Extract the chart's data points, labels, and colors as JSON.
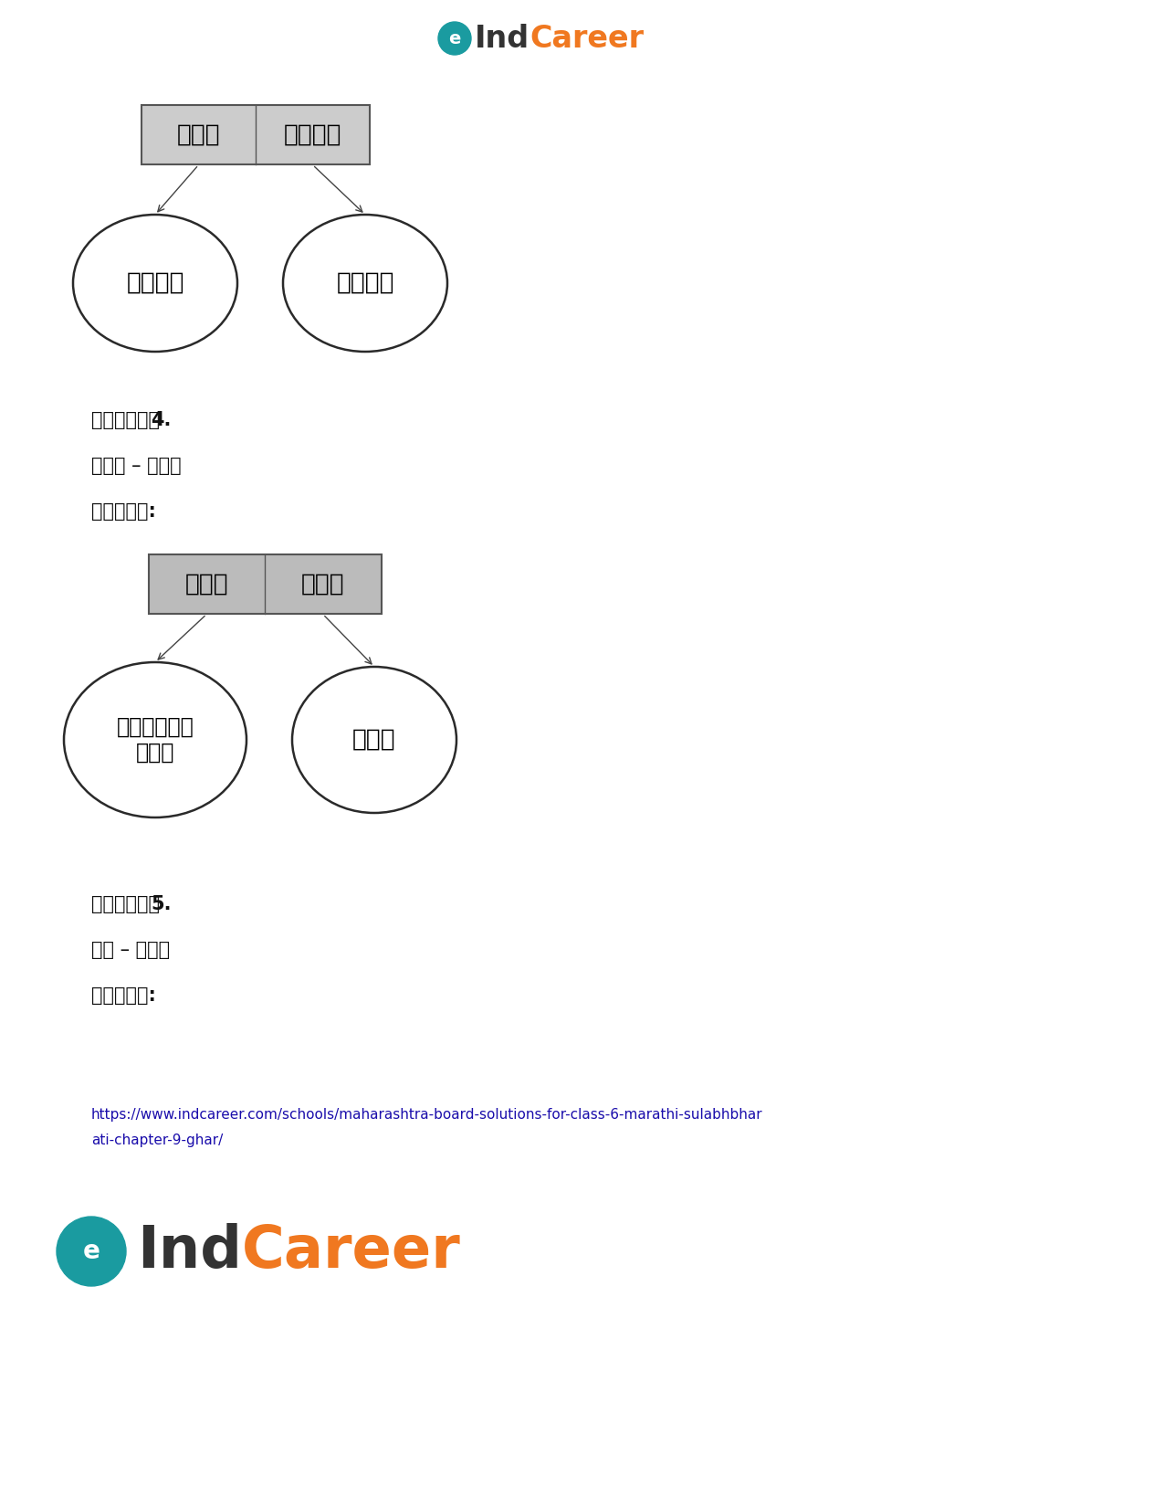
{
  "bg_color": "#ffffff",
  "page_width": 12.75,
  "page_height": 16.51,
  "logo_color_orange": "#f07820",
  "logo_color_dark": "#333333",
  "logo_color_teal": "#1a9ba0",
  "diagram1": {
    "box_fill": "#cccccc",
    "cell1_text": "खरे",
    "cell2_text": "खारे",
    "left_circle_text": "सत्य",
    "right_circle_text": "खारट"
  },
  "diagram2": {
    "box_fill": "#bbbbbb",
    "cell1_text": "गार",
    "cell2_text": "गार",
    "left_circle_text": "फळातील\nमगज",
    "right_circle_text": "थंड"
  },
  "prashna4_label": "प्रश्न ",
  "prashna4_num": "4.",
  "gar_gar_text": "गार – गार",
  "uttar4_text": "उत्तर:",
  "prashna5_label": "प्रश्न ",
  "prashna5_num": "5.",
  "ghar_ghar_text": "घर – घार",
  "uttar5_text": "उत्तर:",
  "url_text": "https://www.indcareer.com/schools/maharashtra-board-solutions-for-class-6-marathi-sulabhbhar\nati-chapter-9-ghar/",
  "text_color": "#111111",
  "url_color": "#1a0dab"
}
